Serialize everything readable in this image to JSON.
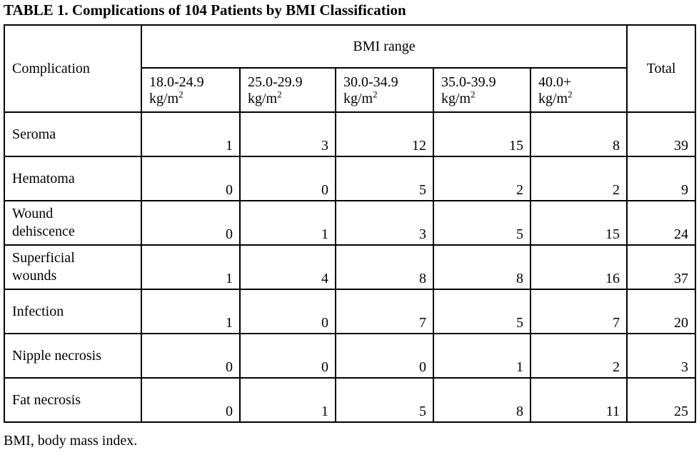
{
  "page": {
    "title": "TABLE 1. Complications of 104 Patients by BMI Classification",
    "footnote": "BMI, body mass index."
  },
  "table": {
    "corner_header": "Complication",
    "group_header": "BMI range",
    "total_header": "Total",
    "bmi_columns": [
      {
        "range": "18.0-24.9",
        "unit": "kg/m",
        "sup": "2"
      },
      {
        "range": "25.0-29.9",
        "unit": "kg/m",
        "sup": "2"
      },
      {
        "range": "30.0-34.9",
        "unit": "kg/m",
        "sup": "2"
      },
      {
        "range": "35.0-39.9",
        "unit": "kg/m",
        "sup": "2"
      },
      {
        "range": "40.0+",
        "unit": "kg/m",
        "sup": "2"
      }
    ],
    "rows": [
      {
        "label": "Seroma",
        "values": [
          "1",
          "3",
          "12",
          "15",
          "8"
        ],
        "total": "39"
      },
      {
        "label": "Hematoma",
        "values": [
          "0",
          "0",
          "5",
          "2",
          "2"
        ],
        "total": "9"
      },
      {
        "label": "Wound\ndehiscence",
        "values": [
          "0",
          "1",
          "3",
          "5",
          "15"
        ],
        "total": "24"
      },
      {
        "label": "Superficial\nwounds",
        "values": [
          "1",
          "4",
          "8",
          "8",
          "16"
        ],
        "total": "37"
      },
      {
        "label": "Infection",
        "values": [
          "1",
          "0",
          "7",
          "5",
          "7"
        ],
        "total": "20"
      },
      {
        "label": "Nipple necrosis",
        "values": [
          "0",
          "0",
          "0",
          "1",
          "2"
        ],
        "total": "3"
      },
      {
        "label": "Fat necrosis",
        "values": [
          "0",
          "1",
          "5",
          "8",
          "11"
        ],
        "total": "25"
      }
    ]
  }
}
